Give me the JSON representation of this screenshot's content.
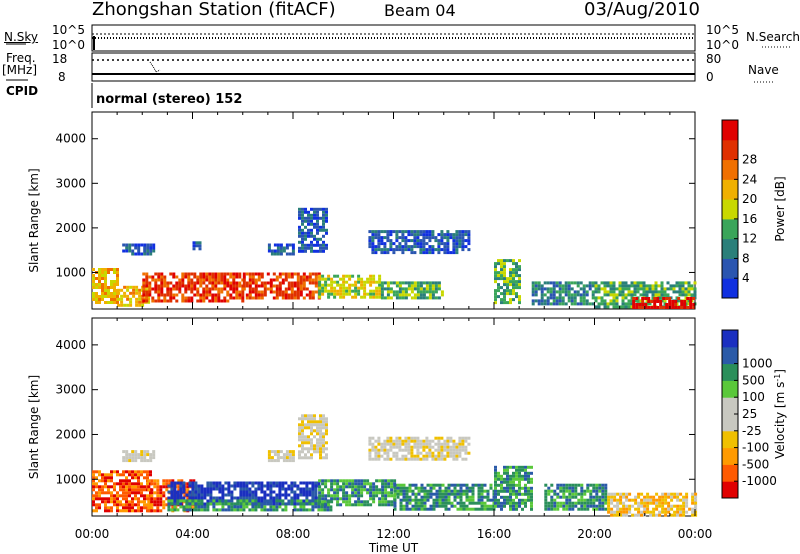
{
  "header": {
    "station": "Zhongshan Station (fitACF)",
    "beam": "Beam 04",
    "date": "03/Aug/2010"
  },
  "noise_panel": {
    "left_label": "N.Sky",
    "right_label": "N.Search",
    "left_ticks": [
      "10^5",
      "10^0"
    ],
    "right_ticks": [
      "10^5",
      "10^0"
    ]
  },
  "freq_panel": {
    "left_label_1": "Freq.",
    "left_label_2": "[MHz]",
    "right_label": "Nave",
    "left_ticks": [
      "18",
      "8"
    ],
    "right_ticks": [
      "80",
      "0"
    ]
  },
  "cpid_panel": {
    "label": "CPID",
    "mode": "normal (stereo) 152"
  },
  "colors": {
    "power": [
      "#1030e0",
      "#2a55b0",
      "#2a7f7a",
      "#3aa55a",
      "#c8d800",
      "#f0b000",
      "#f07000",
      "#e03000",
      "#e00000"
    ],
    "velocity": [
      "#e00000",
      "#ff5a00",
      "#ff9a00",
      "#f0c000",
      "#c8c8c0",
      "#c8c8c0",
      "#5ac83a",
      "#2a8f5a",
      "#2a5aa8",
      "#1a2fc0"
    ]
  },
  "chart_data": [
    {
      "type": "heatmap",
      "quantity": "Power",
      "ylabel": "Slant Range [km]",
      "colorbar_label": "Power [dB]",
      "colorbar_ticks": [
        "4",
        "8",
        "12",
        "16",
        "20",
        "24",
        "28"
      ],
      "y_ticks": [
        "1000",
        "2000",
        "3000",
        "4000"
      ],
      "y_range": [
        180,
        4600
      ],
      "x_range_hours": [
        0,
        24
      ],
      "regions": [
        {
          "t": [
            0.0,
            1.0
          ],
          "range": [
            300,
            1100
          ],
          "level": 5
        },
        {
          "t": [
            1.0,
            2.2
          ],
          "range": [
            280,
            700
          ],
          "level": 5
        },
        {
          "t": [
            1.2,
            2.5
          ],
          "range": [
            1400,
            1650
          ],
          "level": 1
        },
        {
          "t": [
            2.0,
            6.0
          ],
          "range": [
            350,
            1000
          ],
          "level": 7
        },
        {
          "t": [
            6.0,
            9.0
          ],
          "range": [
            400,
            1000
          ],
          "level": 7
        },
        {
          "t": [
            4.0,
            4.3
          ],
          "range": [
            1500,
            1700
          ],
          "level": 1
        },
        {
          "t": [
            7.0,
            8.0
          ],
          "range": [
            1400,
            1650
          ],
          "level": 1
        },
        {
          "t": [
            8.2,
            9.3
          ],
          "range": [
            1500,
            2450
          ],
          "level": 1
        },
        {
          "t": [
            9.0,
            11.5
          ],
          "range": [
            450,
            950
          ],
          "level": 4
        },
        {
          "t": [
            11.0,
            15.0
          ],
          "range": [
            1450,
            1950
          ],
          "level": 1
        },
        {
          "t": [
            11.5,
            14.0
          ],
          "range": [
            400,
            800
          ],
          "level": 3
        },
        {
          "t": [
            16.0,
            17.0
          ],
          "range": [
            300,
            1300
          ],
          "level": 3
        },
        {
          "t": [
            17.5,
            20.0
          ],
          "range": [
            300,
            800
          ],
          "level": 2
        },
        {
          "t": [
            20.0,
            24.0
          ],
          "range": [
            200,
            800
          ],
          "level": 3
        },
        {
          "t": [
            21.5,
            24.0
          ],
          "range": [
            200,
            450
          ],
          "level": 8
        }
      ]
    },
    {
      "type": "heatmap",
      "quantity": "Velocity",
      "ylabel": "Slant Range [km]",
      "colorbar_label": "Velocity [m s-1]",
      "colorbar_ticks": [
        "-1000",
        "-500",
        "-100",
        "-25",
        "25",
        "100",
        "500",
        "1000"
      ],
      "y_ticks": [
        "1000",
        "2000",
        "3000",
        "4000"
      ],
      "y_range": [
        180,
        4600
      ],
      "x_range_hours": [
        0,
        24
      ],
      "regions": [
        {
          "t": [
            0.0,
            2.3
          ],
          "range": [
            300,
            1200
          ],
          "level": 1
        },
        {
          "t": [
            1.2,
            2.5
          ],
          "range": [
            1400,
            1650
          ],
          "level": 4
        },
        {
          "t": [
            2.2,
            4.0
          ],
          "range": [
            300,
            1000
          ],
          "level": 1
        },
        {
          "t": [
            3.0,
            9.0
          ],
          "range": [
            450,
            950
          ],
          "level": 9
        },
        {
          "t": [
            3.0,
            9.5
          ],
          "range": [
            300,
            550
          ],
          "level": 7
        },
        {
          "t": [
            8.2,
            9.3
          ],
          "range": [
            1500,
            2450
          ],
          "level": 4
        },
        {
          "t": [
            7.0,
            8.0
          ],
          "range": [
            1400,
            1650
          ],
          "level": 4
        },
        {
          "t": [
            9.0,
            12.0
          ],
          "range": [
            400,
            1000
          ],
          "level": 7
        },
        {
          "t": [
            11.0,
            15.0
          ],
          "range": [
            1450,
            1950
          ],
          "level": 4
        },
        {
          "t": [
            12.0,
            16.0
          ],
          "range": [
            350,
            900
          ],
          "level": 7
        },
        {
          "t": [
            16.0,
            17.5
          ],
          "range": [
            300,
            1300
          ],
          "level": 7
        },
        {
          "t": [
            18.0,
            20.5
          ],
          "range": [
            300,
            900
          ],
          "level": 7
        },
        {
          "t": [
            20.5,
            24.0
          ],
          "range": [
            200,
            700
          ],
          "level": 3
        }
      ]
    }
  ],
  "x_axis": {
    "ticks": [
      "00:00",
      "04:00",
      "08:00",
      "12:00",
      "16:00",
      "20:00",
      "00:00"
    ],
    "label": "Time UT"
  }
}
